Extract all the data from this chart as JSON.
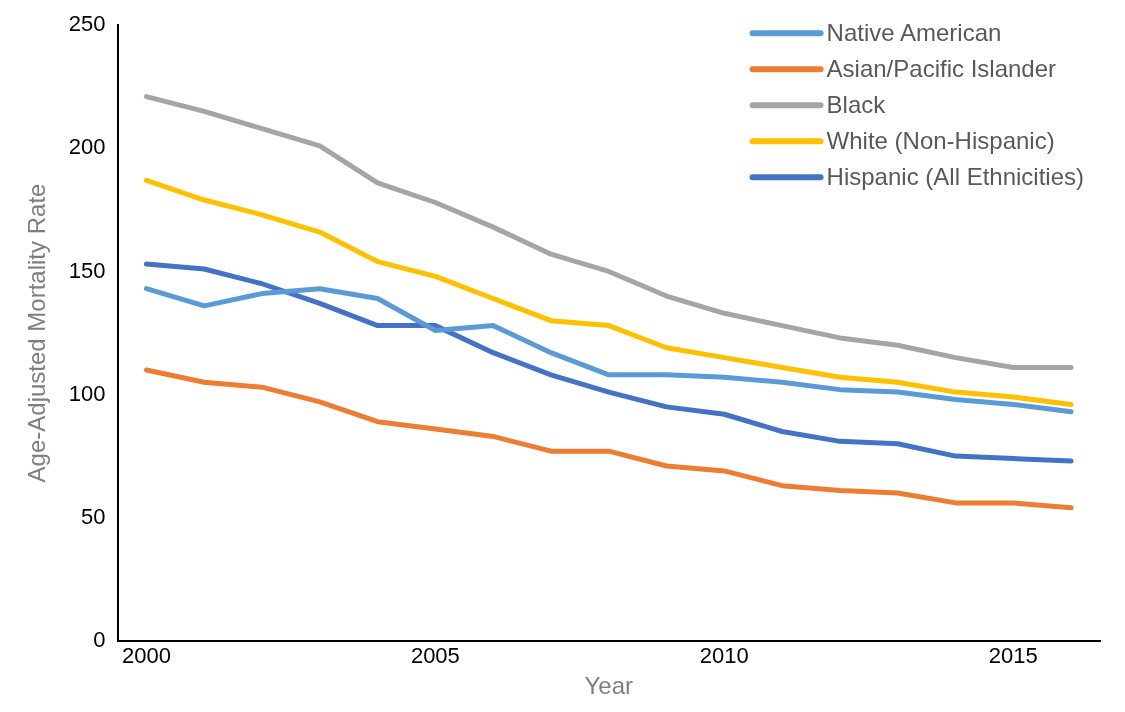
{
  "chart_data": {
    "type": "line",
    "xlabel": "Year",
    "ylabel": "Age-Adjusted Mortality Rate",
    "x": [
      2000,
      2001,
      2002,
      2003,
      2004,
      2005,
      2006,
      2007,
      2008,
      2009,
      2010,
      2011,
      2012,
      2013,
      2014,
      2015,
      2016
    ],
    "series": [
      {
        "name": "Native American",
        "color": "#5b9bd5",
        "values": [
          143,
          136,
          141,
          143,
          139,
          126,
          128,
          117,
          108,
          108,
          107,
          105,
          102,
          101,
          98,
          96,
          93
        ]
      },
      {
        "name": "Asian/Pacific Islander",
        "color": "#ed7d31",
        "values": [
          110,
          105,
          103,
          97,
          89,
          86,
          83,
          77,
          77,
          71,
          69,
          63,
          61,
          60,
          56,
          56,
          54
        ]
      },
      {
        "name": "Black",
        "color": "#a5a5a5",
        "values": [
          221,
          215,
          208,
          201,
          186,
          178,
          168,
          157,
          150,
          140,
          133,
          128,
          123,
          120,
          115,
          111,
          111
        ]
      },
      {
        "name": "White (Non-Hispanic)",
        "color": "#ffc000",
        "values": [
          187,
          179,
          173,
          166,
          154,
          148,
          139,
          130,
          128,
          119,
          115,
          111,
          107,
          105,
          101,
          99,
          96
        ]
      },
      {
        "name": "Hispanic (All Ethnicities)",
        "color": "#4472c4",
        "values": [
          153,
          151,
          145,
          137,
          128,
          128,
          117,
          108,
          101,
          95,
          92,
          85,
          81,
          80,
          75,
          74,
          73
        ]
      }
    ],
    "xlim": [
      1999.5,
      2016.5
    ],
    "xticks": [
      2000,
      2005,
      2010,
      2015
    ],
    "ylim": [
      0,
      250
    ],
    "yticks": [
      0,
      50,
      100,
      150,
      200,
      250
    ],
    "grid": false,
    "legend": "top right",
    "marker": "none",
    "line_style": "solid"
  }
}
